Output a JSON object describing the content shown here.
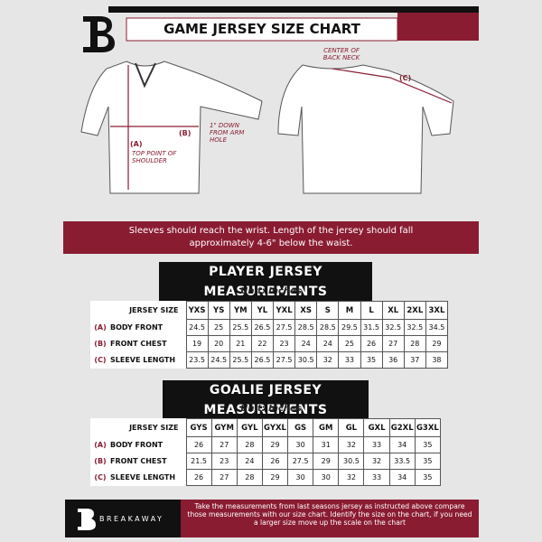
{
  "header": {
    "title": "GAME JERSEY SIZE CHART"
  },
  "diagram": {
    "front": {
      "a": "(A)",
      "a_note": "TOP POINT OF SHOULDER",
      "b": "(B)",
      "b_note": "1\" DOWN FROM ARM HOLE"
    },
    "back": {
      "neck_note": "CENTER OF BACK NECK",
      "c": "(C)"
    }
  },
  "banner": "Sleeves should reach the wrist. Length of the jersey should fall approximately 4-6\" below the waist.",
  "player_table": {
    "title": "PLAYER JERSEY MEASUREMENTS",
    "unit": "Unit: Inches",
    "size_label": "JERSEY SIZE",
    "columns": [
      "YXS",
      "YS",
      "YM",
      "YL",
      "YXL",
      "XS",
      "S",
      "M",
      "L",
      "XL",
      "2XL",
      "3XL"
    ],
    "rows": [
      {
        "key": "(A)",
        "label": "BODY FRONT",
        "values": [
          24.5,
          25,
          25.5,
          26.5,
          27.5,
          28.5,
          28.5,
          29.5,
          31.5,
          32.5,
          32.5,
          34.5
        ]
      },
      {
        "key": "(B)",
        "label": "FRONT CHEST",
        "values": [
          19,
          20,
          21,
          22,
          23,
          24,
          24,
          25,
          26,
          27,
          28,
          29
        ]
      },
      {
        "key": "(C)",
        "label": "SLEEVE LENGTH",
        "values": [
          23.5,
          24.5,
          25.5,
          26.5,
          27.5,
          30.5,
          32,
          33,
          35,
          36,
          37,
          38
        ]
      }
    ]
  },
  "goalie_table": {
    "title": "GOALIE JERSEY MEASUREMENTS",
    "unit": "Unit: Inches",
    "size_label": "JERSEY SIZE",
    "columns": [
      "GYS",
      "GYM",
      "GYL",
      "GYXL",
      "GS",
      "GM",
      "GL",
      "GXL",
      "G2XL",
      "G3XL"
    ],
    "rows": [
      {
        "key": "(A)",
        "label": "BODY FRONT",
        "values": [
          26,
          27,
          28,
          29,
          30,
          31,
          32,
          33,
          34,
          35
        ]
      },
      {
        "key": "(B)",
        "label": "FRONT CHEST",
        "values": [
          21.5,
          23,
          24,
          26,
          27.5,
          29,
          30.5,
          32,
          33.5,
          35
        ]
      },
      {
        "key": "(C)",
        "label": "SLEEVE LENGTH",
        "values": [
          26,
          27,
          28,
          29,
          30,
          30,
          32,
          33,
          34,
          35
        ]
      }
    ]
  },
  "footer": {
    "brand": "BREAKAWAY",
    "text": "Take the measurements from last seasons jersey as instructed above compare those measurements  with our size chart. Identify the size on the chart, if you need a larger size move up the scale on the chart"
  }
}
